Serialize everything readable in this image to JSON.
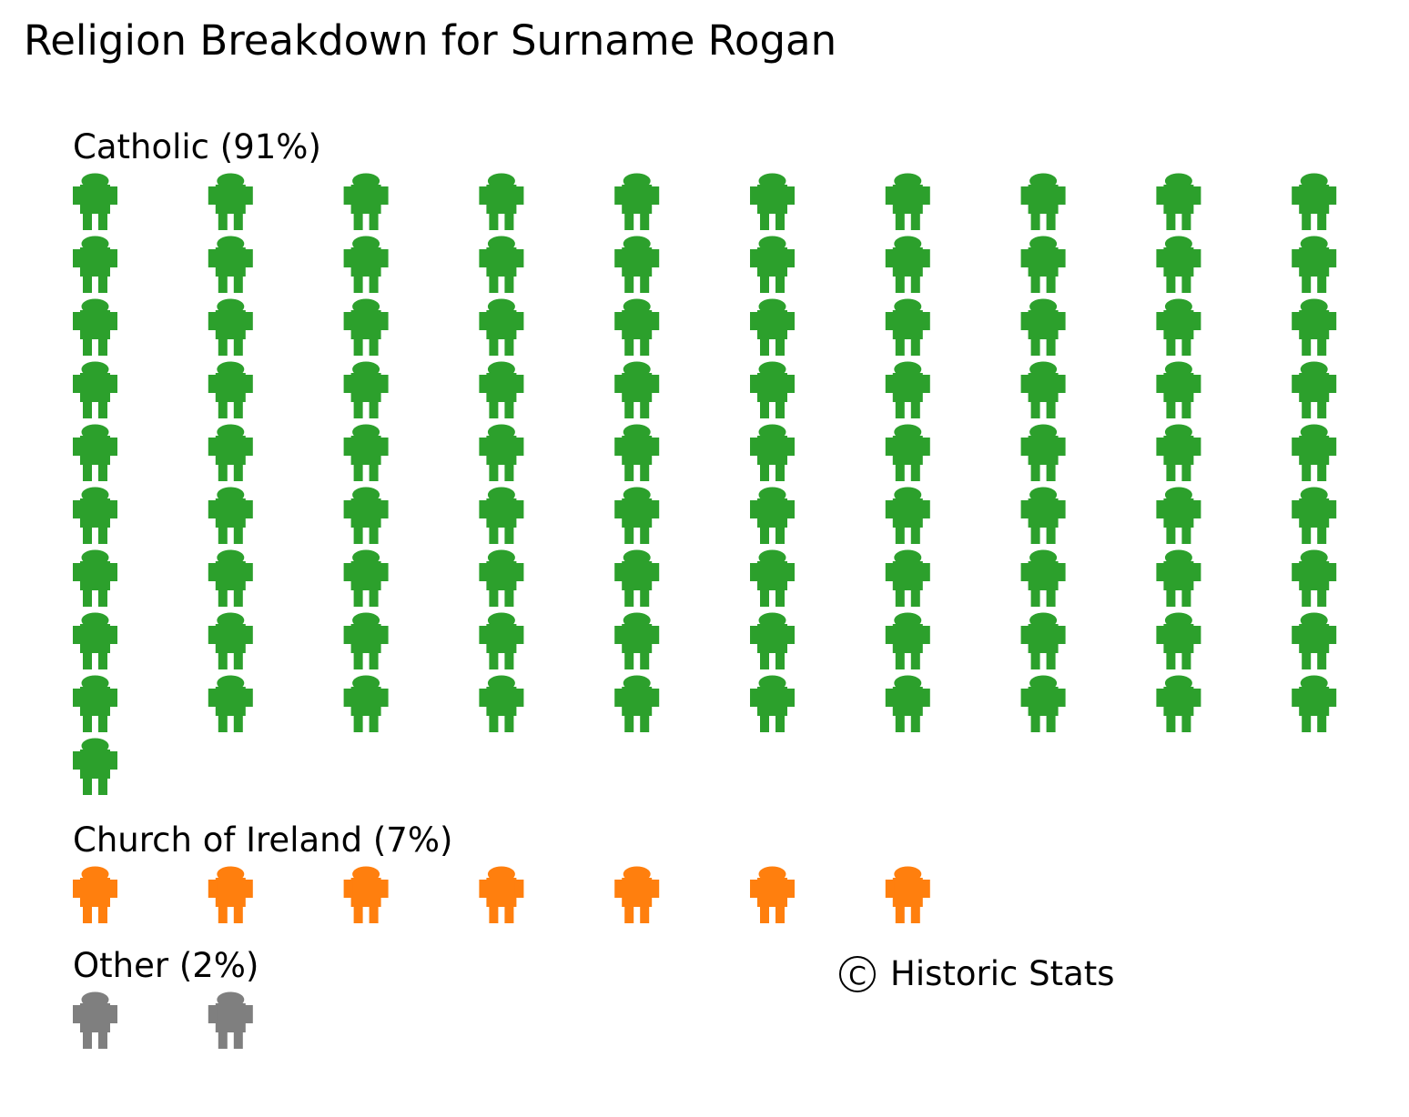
{
  "chart_data": {
    "type": "pictogram",
    "title": "Religion Breakdown for Surname Rogan",
    "icon": "person-icon",
    "units_per_icon": "1%",
    "columns": 10,
    "series": [
      {
        "name": "Catholic",
        "label": "Catholic (91%)",
        "value": 91,
        "color": "#2ca02c"
      },
      {
        "name": "Church of Ireland",
        "label": "Church of Ireland (7%)",
        "value": 7,
        "color": "#ff7f0e"
      },
      {
        "name": "Other",
        "label": "Other (2%)",
        "value": 2,
        "color": "#7f7f7f"
      }
    ]
  },
  "copyright": {
    "symbol": "C",
    "text": "Historic Stats"
  }
}
